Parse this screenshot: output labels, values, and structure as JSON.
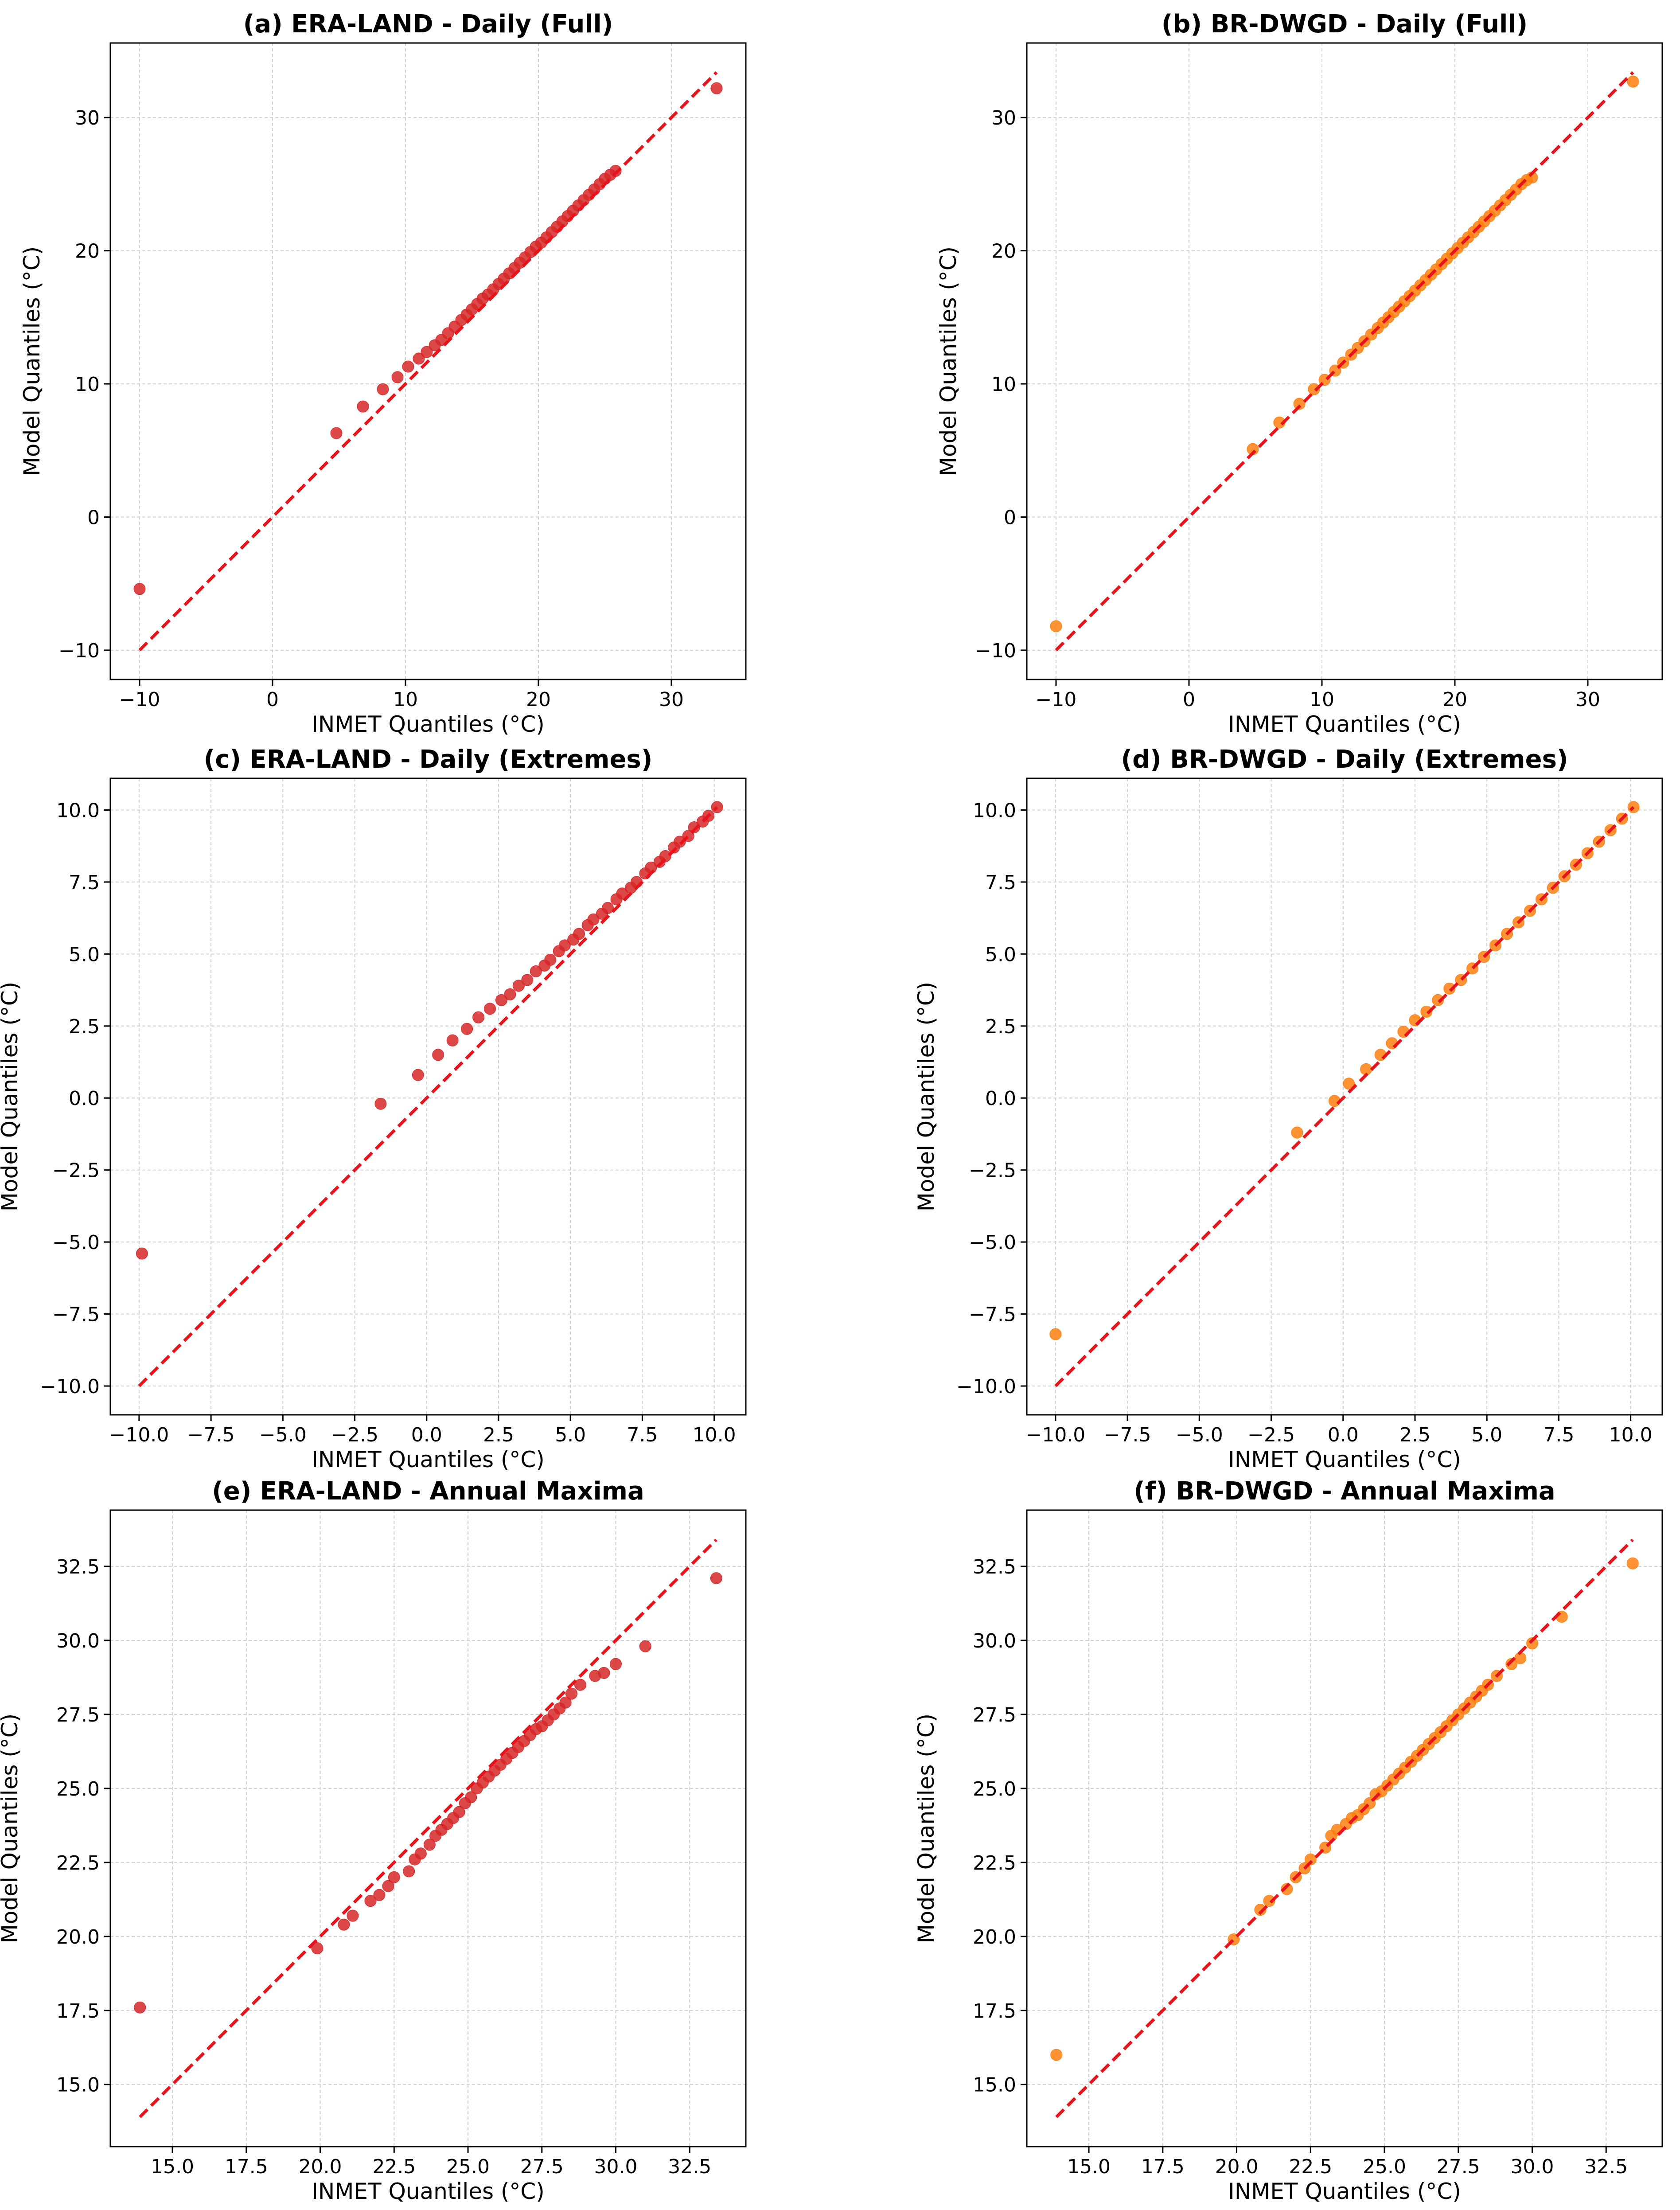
{
  "colors": {
    "era": "#d62728",
    "br": "#ff7f0e",
    "reference_line": "#e8141c",
    "grid": "#cfcfcf"
  },
  "chart_data": [
    {
      "id": "a",
      "type": "scatter",
      "title": "(a) ERA-LAND - Daily (Full)",
      "xlabel": "INMET Quantiles (°C)",
      "ylabel": "Model Quantiles (°C)",
      "xlim": [
        -12.2,
        35.6
      ],
      "ylim": [
        -12.2,
        35.6
      ],
      "xticks": [
        -10,
        0,
        10,
        20,
        30
      ],
      "yticks": [
        -10,
        0,
        10,
        20,
        30
      ],
      "tick_format": "int",
      "grid": true,
      "marker_color": "#d62728",
      "reference_line": {
        "from": -10,
        "to": 33.4
      },
      "points": [
        [
          -10,
          -5.4
        ],
        [
          4.8,
          6.3
        ],
        [
          6.8,
          8.3
        ],
        [
          8.3,
          9.6
        ],
        [
          9.4,
          10.5
        ],
        [
          10.2,
          11.3
        ],
        [
          11,
          11.9
        ],
        [
          11.6,
          12.4
        ],
        [
          12.2,
          12.9
        ],
        [
          12.7,
          13.3
        ],
        [
          13.2,
          13.8
        ],
        [
          13.7,
          14.3
        ],
        [
          14.2,
          14.8
        ],
        [
          14.6,
          15.2
        ],
        [
          15,
          15.6
        ],
        [
          15.4,
          16
        ],
        [
          15.8,
          16.4
        ],
        [
          16.2,
          16.7
        ],
        [
          16.6,
          17.1
        ],
        [
          17,
          17.5
        ],
        [
          17.4,
          17.9
        ],
        [
          17.8,
          18.3
        ],
        [
          18.2,
          18.7
        ],
        [
          18.6,
          19.1
        ],
        [
          19,
          19.5
        ],
        [
          19.4,
          19.9
        ],
        [
          19.8,
          20.3
        ],
        [
          20.2,
          20.6
        ],
        [
          20.6,
          21
        ],
        [
          21,
          21.4
        ],
        [
          21.4,
          21.8
        ],
        [
          21.8,
          22.2
        ],
        [
          22.2,
          22.6
        ],
        [
          22.6,
          23
        ],
        [
          23,
          23.4
        ],
        [
          23.4,
          23.8
        ],
        [
          23.8,
          24.2
        ],
        [
          24.2,
          24.6
        ],
        [
          24.6,
          25
        ],
        [
          25,
          25.4
        ],
        [
          25.4,
          25.7
        ],
        [
          25.8,
          26
        ],
        [
          33.4,
          32.2
        ]
      ]
    },
    {
      "id": "b",
      "type": "scatter",
      "title": "(b) BR-DWGD - Daily (Full)",
      "xlabel": "INMET Quantiles (°C)",
      "ylabel": "Model Quantiles (°C)",
      "xlim": [
        -12.2,
        35.6
      ],
      "ylim": [
        -12.2,
        35.6
      ],
      "xticks": [
        -10,
        0,
        10,
        20,
        30
      ],
      "yticks": [
        -10,
        0,
        10,
        20,
        30
      ],
      "tick_format": "int",
      "grid": true,
      "marker_color": "#ff7f0e",
      "reference_line": {
        "from": -10,
        "to": 33.4
      },
      "points": [
        [
          -10,
          -8.2
        ],
        [
          4.8,
          5.1
        ],
        [
          6.8,
          7.1
        ],
        [
          8.3,
          8.5
        ],
        [
          9.4,
          9.6
        ],
        [
          10.2,
          10.3
        ],
        [
          11,
          11
        ],
        [
          11.6,
          11.6
        ],
        [
          12.2,
          12.2
        ],
        [
          12.7,
          12.7
        ],
        [
          13.2,
          13.2
        ],
        [
          13.7,
          13.7
        ],
        [
          14.2,
          14.2
        ],
        [
          14.6,
          14.6
        ],
        [
          15,
          15
        ],
        [
          15.4,
          15.4
        ],
        [
          15.8,
          15.8
        ],
        [
          16.2,
          16.2
        ],
        [
          16.6,
          16.6
        ],
        [
          17,
          17
        ],
        [
          17.4,
          17.4
        ],
        [
          17.8,
          17.8
        ],
        [
          18.2,
          18.2
        ],
        [
          18.6,
          18.6
        ],
        [
          19,
          19
        ],
        [
          19.4,
          19.4
        ],
        [
          19.8,
          19.8
        ],
        [
          20.2,
          20.2
        ],
        [
          20.6,
          20.6
        ],
        [
          21,
          21
        ],
        [
          21.4,
          21.4
        ],
        [
          21.8,
          21.8
        ],
        [
          22.2,
          22.2
        ],
        [
          22.6,
          22.6
        ],
        [
          23,
          23
        ],
        [
          23.4,
          23.4
        ],
        [
          23.8,
          23.8
        ],
        [
          24.2,
          24.2
        ],
        [
          24.6,
          24.6
        ],
        [
          25,
          25
        ],
        [
          25.4,
          25.3
        ],
        [
          25.8,
          25.5
        ],
        [
          33.4,
          32.7
        ]
      ]
    },
    {
      "id": "c",
      "type": "scatter",
      "title": "(c) ERA-LAND - Daily (Extremes)",
      "xlabel": "INMET Quantiles (°C)",
      "ylabel": "Model Quantiles (°C)",
      "xlim": [
        -11,
        11.1
      ],
      "ylim": [
        -11,
        11.1
      ],
      "xticks": [
        -10,
        -7.5,
        -5,
        -2.5,
        0,
        2.5,
        5,
        7.5,
        10
      ],
      "yticks": [
        -10,
        -7.5,
        -5,
        -2.5,
        0,
        2.5,
        5,
        7.5,
        10
      ],
      "tick_format": "one_decimal",
      "grid": true,
      "marker_color": "#d62728",
      "reference_line": {
        "from": -10,
        "to": 10.1
      },
      "points": [
        [
          -9.9,
          -5.4
        ],
        [
          -1.6,
          -0.2
        ],
        [
          -0.3,
          0.8
        ],
        [
          0.4,
          1.5
        ],
        [
          0.9,
          2
        ],
        [
          1.4,
          2.4
        ],
        [
          1.8,
          2.8
        ],
        [
          2.2,
          3.1
        ],
        [
          2.6,
          3.4
        ],
        [
          2.9,
          3.6
        ],
        [
          3.2,
          3.9
        ],
        [
          3.5,
          4.1
        ],
        [
          3.8,
          4.4
        ],
        [
          4.1,
          4.6
        ],
        [
          4.3,
          4.8
        ],
        [
          4.6,
          5.1
        ],
        [
          4.8,
          5.3
        ],
        [
          5.1,
          5.5
        ],
        [
          5.3,
          5.7
        ],
        [
          5.6,
          6
        ],
        [
          5.8,
          6.2
        ],
        [
          6.1,
          6.4
        ],
        [
          6.3,
          6.6
        ],
        [
          6.6,
          6.9
        ],
        [
          6.8,
          7.1
        ],
        [
          7.1,
          7.3
        ],
        [
          7.3,
          7.5
        ],
        [
          7.6,
          7.8
        ],
        [
          7.8,
          8
        ],
        [
          8.1,
          8.2
        ],
        [
          8.3,
          8.4
        ],
        [
          8.6,
          8.7
        ],
        [
          8.8,
          8.9
        ],
        [
          9.1,
          9.1
        ],
        [
          9.3,
          9.4
        ],
        [
          9.6,
          9.6
        ],
        [
          9.8,
          9.8
        ],
        [
          10.1,
          10.1
        ]
      ]
    },
    {
      "id": "d",
      "type": "scatter",
      "title": "(d) BR-DWGD - Daily (Extremes)",
      "xlabel": "INMET Quantiles (°C)",
      "ylabel": "Model Quantiles (°C)",
      "xlim": [
        -11,
        11.1
      ],
      "ylim": [
        -11,
        11.1
      ],
      "xticks": [
        -10,
        -7.5,
        -5,
        -2.5,
        0,
        2.5,
        5,
        7.5,
        10
      ],
      "yticks": [
        -10,
        -7.5,
        -5,
        -2.5,
        0,
        2.5,
        5,
        7.5,
        10
      ],
      "tick_format": "one_decimal",
      "grid": true,
      "marker_color": "#ff7f0e",
      "reference_line": {
        "from": -10,
        "to": 10.1
      },
      "points": [
        [
          -10,
          -8.2
        ],
        [
          -1.6,
          -1.2
        ],
        [
          -0.3,
          -0.1
        ],
        [
          0.2,
          0.5
        ],
        [
          0.8,
          1
        ],
        [
          1.3,
          1.5
        ],
        [
          1.7,
          1.9
        ],
        [
          2.1,
          2.3
        ],
        [
          2.5,
          2.7
        ],
        [
          2.9,
          3
        ],
        [
          3.3,
          3.4
        ],
        [
          3.7,
          3.8
        ],
        [
          4.1,
          4.1
        ],
        [
          4.5,
          4.5
        ],
        [
          4.9,
          4.9
        ],
        [
          5.3,
          5.3
        ],
        [
          5.7,
          5.7
        ],
        [
          6.1,
          6.1
        ],
        [
          6.5,
          6.5
        ],
        [
          6.9,
          6.9
        ],
        [
          7.3,
          7.3
        ],
        [
          7.7,
          7.7
        ],
        [
          8.1,
          8.1
        ],
        [
          8.5,
          8.5
        ],
        [
          8.9,
          8.9
        ],
        [
          9.3,
          9.3
        ],
        [
          9.7,
          9.7
        ],
        [
          10.1,
          10.1
        ]
      ]
    },
    {
      "id": "e",
      "type": "scatter",
      "title": "(e) ERA-LAND - Annual Maxima",
      "xlabel": "INMET Quantiles (°C)",
      "ylabel": "Model Quantiles (°C)",
      "xlim": [
        12.9,
        34.4
      ],
      "ylim": [
        12.9,
        34.4
      ],
      "xticks": [
        15,
        17.5,
        20,
        22.5,
        25,
        27.5,
        30,
        32.5
      ],
      "yticks": [
        15,
        17.5,
        20,
        22.5,
        25,
        27.5,
        30,
        32.5
      ],
      "tick_format": "one_decimal",
      "grid": true,
      "marker_color": "#d62728",
      "reference_line": {
        "from": 13.9,
        "to": 33.4
      },
      "points": [
        [
          13.9,
          17.6
        ],
        [
          19.9,
          19.6
        ],
        [
          20.8,
          20.4
        ],
        [
          21.1,
          20.7
        ],
        [
          21.7,
          21.2
        ],
        [
          22,
          21.4
        ],
        [
          22.3,
          21.7
        ],
        [
          22.5,
          22
        ],
        [
          23,
          22.2
        ],
        [
          23.2,
          22.6
        ],
        [
          23.4,
          22.8
        ],
        [
          23.7,
          23.1
        ],
        [
          23.9,
          23.4
        ],
        [
          24.1,
          23.6
        ],
        [
          24.3,
          23.8
        ],
        [
          24.5,
          24
        ],
        [
          24.7,
          24.2
        ],
        [
          24.9,
          24.5
        ],
        [
          25.1,
          24.7
        ],
        [
          25.3,
          25
        ],
        [
          25.5,
          25.2
        ],
        [
          25.7,
          25.4
        ],
        [
          25.9,
          25.6
        ],
        [
          26.1,
          25.8
        ],
        [
          26.3,
          26
        ],
        [
          26.5,
          26.2
        ],
        [
          26.7,
          26.4
        ],
        [
          26.9,
          26.6
        ],
        [
          27.1,
          26.8
        ],
        [
          27.3,
          27
        ],
        [
          27.5,
          27.1
        ],
        [
          27.7,
          27.3
        ],
        [
          27.9,
          27.5
        ],
        [
          28.1,
          27.7
        ],
        [
          28.3,
          27.9
        ],
        [
          28.5,
          28.2
        ],
        [
          28.8,
          28.5
        ],
        [
          29.3,
          28.8
        ],
        [
          29.6,
          28.9
        ],
        [
          30,
          29.2
        ],
        [
          31,
          29.8
        ],
        [
          33.4,
          32.1
        ]
      ]
    },
    {
      "id": "f",
      "type": "scatter",
      "title": "(f) BR-DWGD - Annual Maxima",
      "xlabel": "INMET Quantiles (°C)",
      "ylabel": "Model Quantiles (°C)",
      "xlim": [
        12.9,
        34.4
      ],
      "ylim": [
        12.9,
        34.4
      ],
      "xticks": [
        15,
        17.5,
        20,
        22.5,
        25,
        27.5,
        30,
        32.5
      ],
      "yticks": [
        15,
        17.5,
        20,
        22.5,
        25,
        27.5,
        30,
        32.5
      ],
      "tick_format": "one_decimal",
      "grid": true,
      "marker_color": "#ff7f0e",
      "reference_line": {
        "from": 13.9,
        "to": 33.4
      },
      "points": [
        [
          13.9,
          16
        ],
        [
          19.9,
          19.9
        ],
        [
          20.8,
          20.9
        ],
        [
          21.1,
          21.2
        ],
        [
          21.7,
          21.6
        ],
        [
          22,
          22
        ],
        [
          22.3,
          22.3
        ],
        [
          22.5,
          22.6
        ],
        [
          23,
          23
        ],
        [
          23.2,
          23.4
        ],
        [
          23.4,
          23.6
        ],
        [
          23.7,
          23.8
        ],
        [
          23.9,
          24
        ],
        [
          24.1,
          24.1
        ],
        [
          24.3,
          24.3
        ],
        [
          24.5,
          24.5
        ],
        [
          24.7,
          24.8
        ],
        [
          24.9,
          24.9
        ],
        [
          25.1,
          25.1
        ],
        [
          25.3,
          25.3
        ],
        [
          25.5,
          25.5
        ],
        [
          25.7,
          25.7
        ],
        [
          25.9,
          25.9
        ],
        [
          26.1,
          26.1
        ],
        [
          26.3,
          26.3
        ],
        [
          26.5,
          26.5
        ],
        [
          26.7,
          26.7
        ],
        [
          26.9,
          26.9
        ],
        [
          27.1,
          27.1
        ],
        [
          27.3,
          27.3
        ],
        [
          27.5,
          27.5
        ],
        [
          27.7,
          27.7
        ],
        [
          27.9,
          27.9
        ],
        [
          28.1,
          28.1
        ],
        [
          28.3,
          28.3
        ],
        [
          28.5,
          28.5
        ],
        [
          28.8,
          28.8
        ],
        [
          29.3,
          29.2
        ],
        [
          29.6,
          29.4
        ],
        [
          30,
          29.9
        ],
        [
          31,
          30.8
        ],
        [
          33.4,
          32.6
        ]
      ]
    }
  ]
}
